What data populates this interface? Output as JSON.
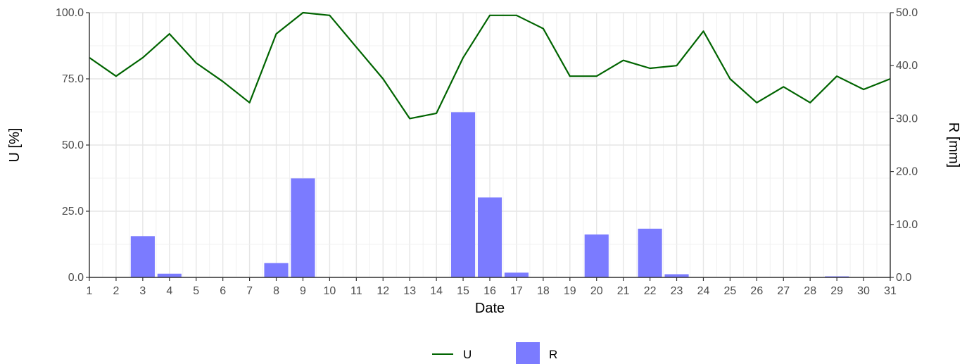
{
  "chart_data": {
    "type": "bar+line",
    "x": [
      1,
      2,
      3,
      4,
      5,
      6,
      7,
      8,
      9,
      10,
      11,
      12,
      13,
      14,
      15,
      16,
      17,
      18,
      19,
      20,
      21,
      22,
      23,
      24,
      25,
      26,
      27,
      28,
      29,
      30,
      31
    ],
    "xlabel": "Date",
    "ylabel_left": "U [%]",
    "ylabel_right": "R [mm]",
    "ylim_left": [
      0,
      100
    ],
    "ylim_right": [
      0,
      50
    ],
    "yticks_left": [
      "0.0",
      "25.0",
      "50.0",
      "75.0",
      "100.0"
    ],
    "yticks_right": [
      "0.0",
      "10.0",
      "20.0",
      "30.0",
      "40.0",
      "50.0"
    ],
    "grid": true,
    "legend_position": "bottom",
    "series": [
      {
        "name": "U",
        "type": "line",
        "axis": "left",
        "color": "#006400",
        "values": [
          83,
          76,
          83,
          92,
          81,
          74,
          66,
          92,
          100,
          99,
          87,
          75,
          60,
          62,
          83,
          99,
          99,
          94,
          76,
          76,
          82,
          79,
          80,
          93,
          75,
          66,
          72,
          66,
          76,
          71,
          75
        ]
      },
      {
        "name": "R",
        "type": "bar",
        "axis": "right",
        "color": "#7b7bff",
        "values": [
          0,
          0,
          7.8,
          0.7,
          0,
          0,
          0,
          2.7,
          18.7,
          0,
          0,
          0,
          0,
          0,
          31.2,
          15.1,
          0.9,
          0,
          0,
          8.1,
          0,
          9.2,
          0.6,
          0,
          0,
          0,
          0,
          0,
          0.2,
          0,
          0
        ]
      }
    ]
  }
}
